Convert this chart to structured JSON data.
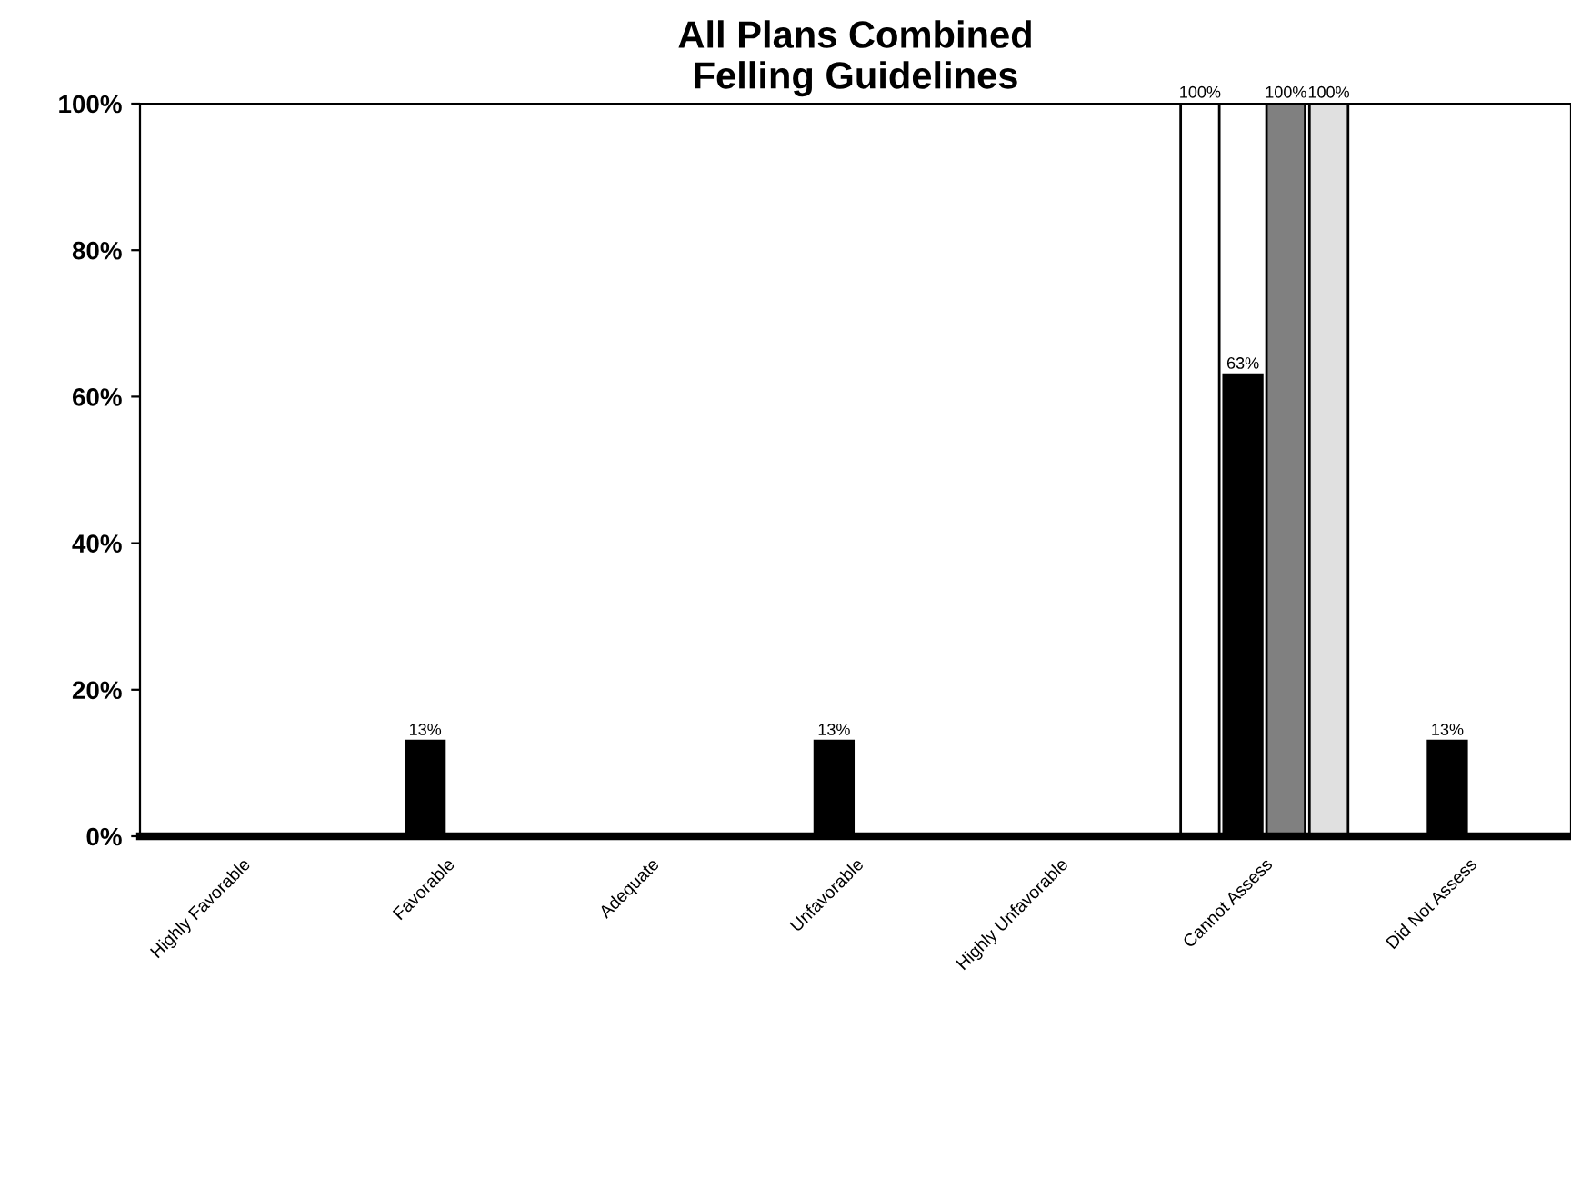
{
  "chart_data": {
    "type": "bar",
    "title": "All Plans Combined\nFelling Guidelines",
    "categories": [
      "Highly Favorable",
      "Favorable",
      "Adequate",
      "Unfavorable",
      "Highly Unfavorable",
      "Cannot Assess",
      "Did Not Assess"
    ],
    "series": [
      {
        "color": "#ffffff",
        "values": [
          0,
          0,
          0,
          0,
          0,
          100,
          0
        ],
        "value_labels": [
          null,
          null,
          null,
          null,
          null,
          "100%",
          null
        ]
      },
      {
        "color": "#000000",
        "values": [
          0,
          13,
          0,
          13,
          0,
          63,
          13
        ],
        "value_labels": [
          null,
          "13%",
          null,
          "13%",
          null,
          "63%",
          "13%"
        ]
      },
      {
        "color": "#808080",
        "values": [
          0,
          0,
          0,
          0,
          0,
          100,
          0
        ],
        "value_labels": [
          null,
          null,
          null,
          null,
          null,
          "100%",
          null
        ]
      },
      {
        "color": "#e0e0e0",
        "values": [
          0,
          0,
          0,
          0,
          0,
          100,
          0
        ],
        "value_labels": [
          null,
          null,
          null,
          null,
          null,
          "100%",
          null
        ]
      }
    ],
    "ylim": [
      0,
      100
    ],
    "yticks": [
      {
        "value": 0,
        "label": "0%"
      },
      {
        "value": 20,
        "label": "20%"
      },
      {
        "value": 40,
        "label": "40%"
      },
      {
        "value": 60,
        "label": "60%"
      },
      {
        "value": 80,
        "label": "80%"
      },
      {
        "value": 100,
        "label": "100%"
      }
    ],
    "grid": false
  }
}
